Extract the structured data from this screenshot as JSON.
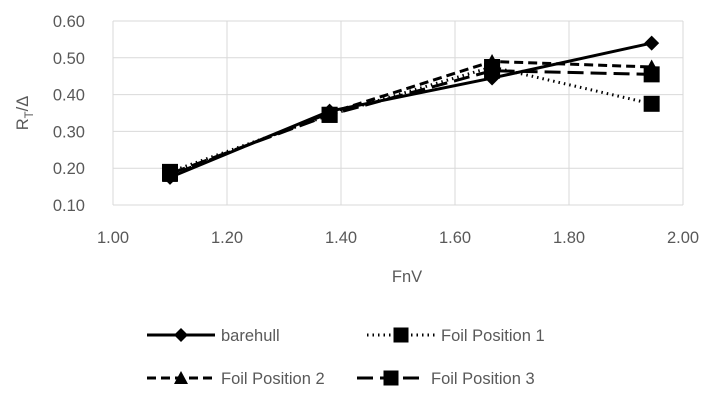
{
  "chart_data": {
    "type": "line",
    "xlabel": "FnV",
    "ylabel_main": "R",
    "ylabel_sub": "T",
    "ylabel_tail": "/Δ",
    "xlim": [
      1.0,
      2.0
    ],
    "ylim": [
      0.1,
      0.6
    ],
    "xticks": [
      "1.00",
      "1.20",
      "1.40",
      "1.60",
      "1.80",
      "2.00"
    ],
    "yticks": [
      "0.10",
      "0.20",
      "0.30",
      "0.40",
      "0.50",
      "0.60"
    ],
    "grid": true,
    "legend_position": "bottom",
    "x": [
      1.1,
      1.38,
      1.665,
      1.945
    ],
    "series": [
      {
        "name": "barehull",
        "values": [
          0.175,
          0.355,
          0.445,
          0.54
        ],
        "dash": "solid",
        "marker": "diamond",
        "color": "#000000"
      },
      {
        "name": "Foil Position 1",
        "values": [
          0.19,
          0.345,
          0.475,
          0.375
        ],
        "dash": "dotted",
        "marker": "square",
        "color": "#000000"
      },
      {
        "name": "Foil Position 2",
        "values": [
          0.18,
          0.35,
          0.49,
          0.475
        ],
        "dash": "dashed",
        "marker": "triangle",
        "color": "#000000"
      },
      {
        "name": "Foil Position 3",
        "values": [
          0.185,
          0.345,
          0.465,
          0.455
        ],
        "dash": "longdash",
        "marker": "square",
        "color": "#000000"
      }
    ]
  }
}
